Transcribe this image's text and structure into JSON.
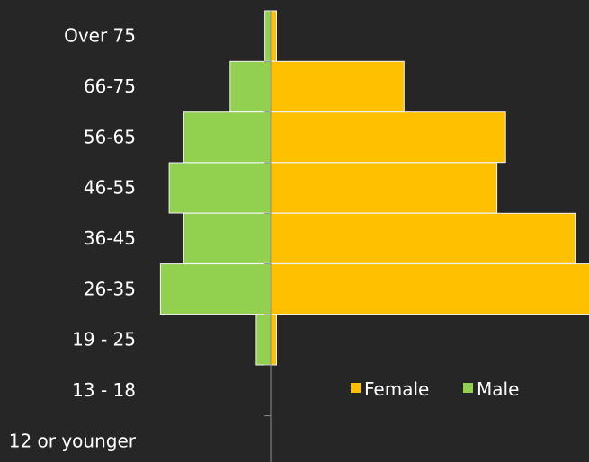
{
  "colors": {
    "background": "#262626",
    "female": "#FFC000",
    "male": "#92D050",
    "axis": "#8C8C8C",
    "bar_outline": "#F2F2F2",
    "text": "#FFFFFF"
  },
  "chart_data": {
    "type": "bar",
    "orientation": "horizontal",
    "layout": "population-pyramid",
    "categories": [
      "12 or younger",
      "13 - 18",
      "19 - 25",
      "26-35",
      "36-45",
      "46-55",
      "56-65",
      "66-75",
      "Over 75"
    ],
    "series": [
      {
        "name": "Female",
        "side": "right",
        "color": "#FFC000",
        "values": [
          0,
          0,
          1,
          55,
          52.5,
          39,
          40.5,
          23,
          1
        ]
      },
      {
        "name": "Male",
        "side": "left",
        "color": "#92D050",
        "values": [
          0,
          0,
          2.5,
          19,
          15,
          17.5,
          15,
          7,
          1
        ]
      }
    ],
    "title": "",
    "xlabel": "",
    "ylabel": "",
    "xlim": [
      -47,
      55
    ],
    "grid": false,
    "legend": "right, inside plot"
  }
}
